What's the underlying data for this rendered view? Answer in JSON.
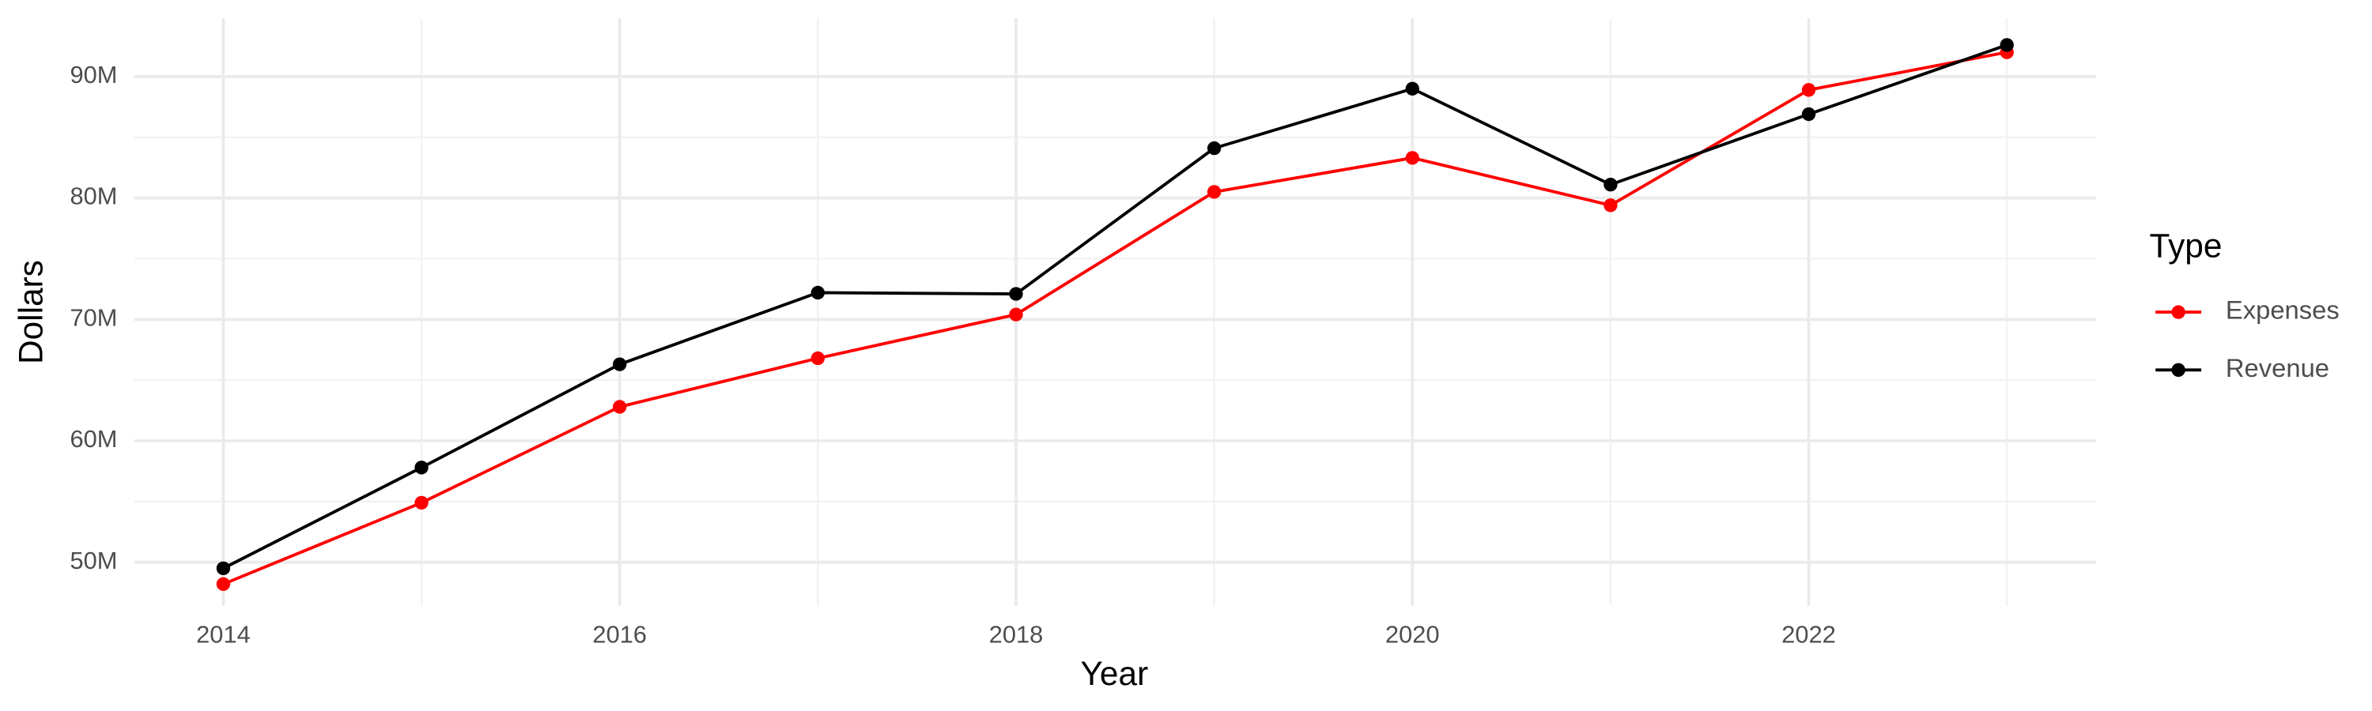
{
  "chart_data": {
    "type": "line",
    "x_label": "Year",
    "y_label": "Dollars",
    "x": [
      2014,
      2015,
      2016,
      2017,
      2018,
      2019,
      2020,
      2021,
      2022,
      2023
    ],
    "series": [
      {
        "name": "Expenses",
        "color": "#ff0000",
        "values": [
          48200000,
          54900000,
          62800000,
          66800000,
          70400000,
          80500000,
          83300000,
          79400000,
          88900000,
          92000000
        ]
      },
      {
        "name": "Revenue",
        "color": "#000000",
        "values": [
          49500000,
          57800000,
          66300000,
          72200000,
          72100000,
          84100000,
          89000000,
          81100000,
          86900000,
          92600000
        ]
      }
    ],
    "xlim": [
      2013.55,
      2023.45
    ],
    "xticks": [
      2014,
      2016,
      2018,
      2020,
      2022
    ],
    "ylim": [
      46400000,
      94800000
    ],
    "yticks": [
      {
        "value": 50000000,
        "label": "50M"
      },
      {
        "value": 60000000,
        "label": "60M"
      },
      {
        "value": 70000000,
        "label": "70M"
      },
      {
        "value": 80000000,
        "label": "80M"
      },
      {
        "value": 90000000,
        "label": "90M"
      }
    ],
    "grid": true,
    "legend_title": "Type",
    "legend_position": "right"
  }
}
